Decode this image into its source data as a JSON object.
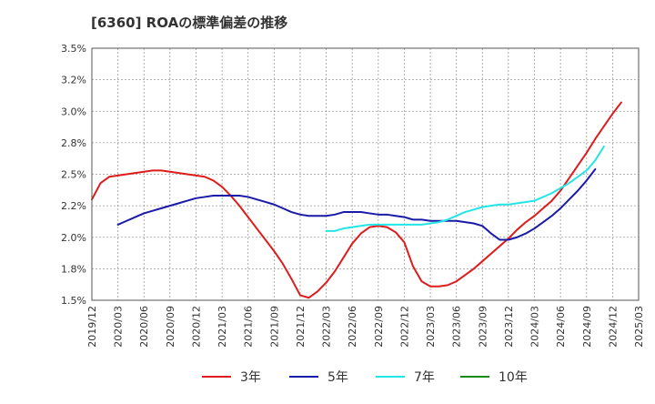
{
  "chart_data": {
    "type": "line",
    "title": "[6360]  ROAの標準偏差の推移",
    "xlabel": "",
    "ylabel": "",
    "ylim": [
      1.5,
      3.5
    ],
    "yticks": [
      "1.5%",
      "1.8%",
      "2.0%",
      "2.2%",
      "2.5%",
      "2.8%",
      "3.0%",
      "3.2%",
      "3.5%"
    ],
    "ytick_values": [
      1.5,
      1.75,
      2.0,
      2.25,
      2.5,
      2.75,
      3.0,
      3.25,
      3.5
    ],
    "xticks": [
      "2019/12",
      "2020/03",
      "2020/06",
      "2020/09",
      "2020/12",
      "2021/03",
      "2021/06",
      "2021/09",
      "2021/12",
      "2022/03",
      "2022/06",
      "2022/09",
      "2022/12",
      "2023/03",
      "2023/06",
      "2023/09",
      "2023/12",
      "2024/03",
      "2024/06",
      "2024/09",
      "2024/12",
      "2025/03"
    ],
    "grid": true,
    "legend_position": "bottom",
    "series": [
      {
        "name": "3年",
        "color": "#dd1c1c",
        "start": "2019/12",
        "values": [
          2.3,
          2.43,
          2.48,
          2.49,
          2.5,
          2.51,
          2.52,
          2.53,
          2.53,
          2.52,
          2.51,
          2.5,
          2.49,
          2.48,
          2.45,
          2.4,
          2.33,
          2.25,
          2.16,
          2.07,
          1.98,
          1.89,
          1.79,
          1.67,
          1.54,
          1.52,
          1.57,
          1.64,
          1.73,
          1.84,
          1.95,
          2.03,
          2.08,
          2.09,
          2.08,
          2.04,
          1.96,
          1.77,
          1.65,
          1.61,
          1.61,
          1.62,
          1.65,
          1.7,
          1.75,
          1.81,
          1.87,
          1.93,
          1.99,
          2.06,
          2.12,
          2.17,
          2.23,
          2.29,
          2.37,
          2.47,
          2.57,
          2.67,
          2.78,
          2.88,
          2.98,
          3.07
        ]
      },
      {
        "name": "5年",
        "color": "#1a1aa8",
        "start": "2020/03",
        "values": [
          2.1,
          2.13,
          2.16,
          2.19,
          2.21,
          2.23,
          2.25,
          2.27,
          2.29,
          2.31,
          2.32,
          2.33,
          2.33,
          2.33,
          2.33,
          2.32,
          2.3,
          2.28,
          2.26,
          2.23,
          2.2,
          2.18,
          2.17,
          2.17,
          2.17,
          2.18,
          2.2,
          2.2,
          2.2,
          2.19,
          2.18,
          2.18,
          2.17,
          2.16,
          2.14,
          2.14,
          2.13,
          2.13,
          2.13,
          2.13,
          2.12,
          2.11,
          2.09,
          2.03,
          1.98,
          1.98,
          2.0,
          2.03,
          2.07,
          2.12,
          2.17,
          2.23,
          2.3,
          2.37,
          2.45,
          2.54
        ]
      },
      {
        "name": "7年",
        "color": "#22e6e6",
        "start": "2022/03",
        "values": [
          2.05,
          2.05,
          2.07,
          2.08,
          2.09,
          2.1,
          2.1,
          2.1,
          2.1,
          2.1,
          2.1,
          2.1,
          2.11,
          2.12,
          2.14,
          2.17,
          2.2,
          2.22,
          2.24,
          2.25,
          2.26,
          2.26,
          2.27,
          2.28,
          2.29,
          2.32,
          2.35,
          2.39,
          2.43,
          2.48,
          2.53,
          2.61,
          2.72
        ]
      },
      {
        "name": "10年",
        "color": "#1a8a1a",
        "start": "",
        "values": []
      }
    ]
  }
}
